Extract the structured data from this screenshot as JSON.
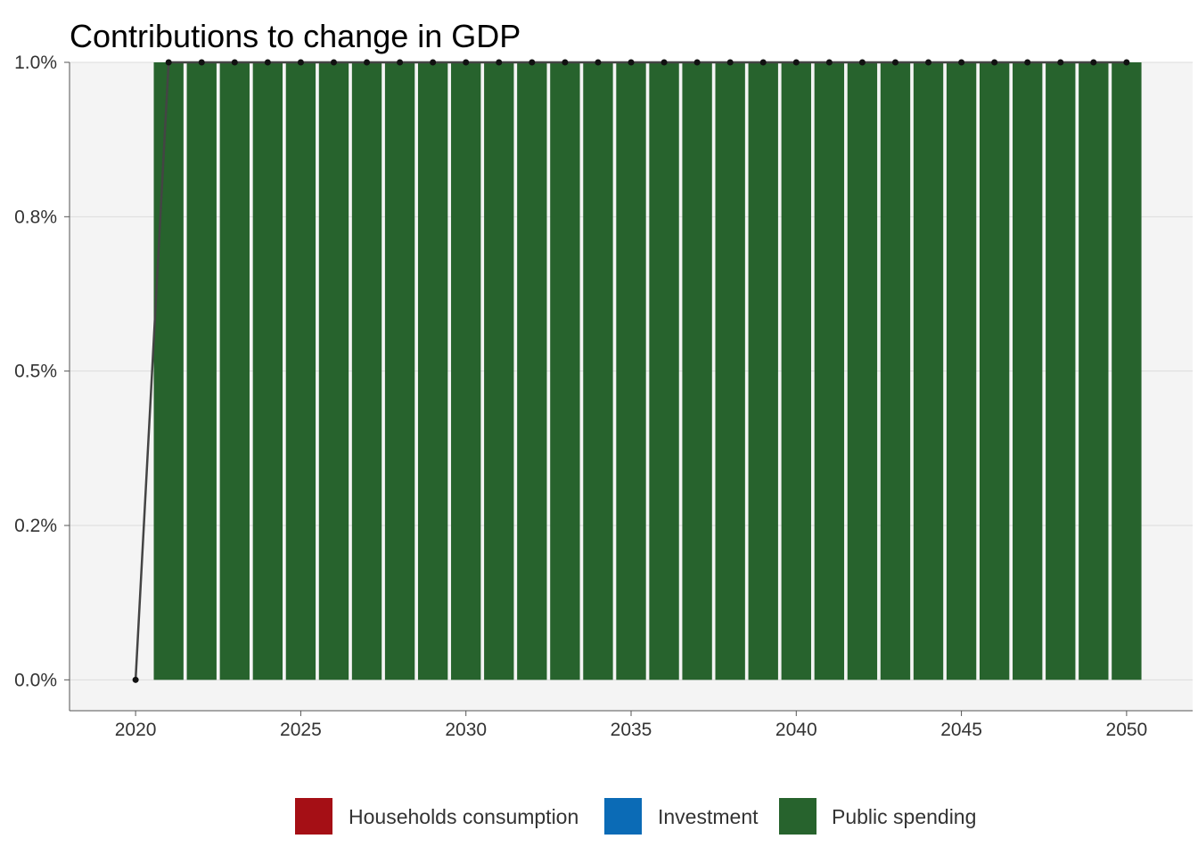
{
  "chart_data": {
    "type": "bar",
    "title": "Contributions to change in GDP",
    "xlabel": "",
    "ylabel": "",
    "x": [
      2020,
      2021,
      2022,
      2023,
      2024,
      2025,
      2026,
      2027,
      2028,
      2029,
      2030,
      2031,
      2032,
      2033,
      2034,
      2035,
      2036,
      2037,
      2038,
      2039,
      2040,
      2041,
      2042,
      2043,
      2044,
      2045,
      2046,
      2047,
      2048,
      2049,
      2050
    ],
    "xlim": [
      2018,
      2052
    ],
    "ylim": [
      -0.0005,
      0.01
    ],
    "x_ticks": [
      {
        "value": 2020,
        "label": "2020"
      },
      {
        "value": 2025,
        "label": "2025"
      },
      {
        "value": 2030,
        "label": "2030"
      },
      {
        "value": 2035,
        "label": "2035"
      },
      {
        "value": 2040,
        "label": "2040"
      },
      {
        "value": 2045,
        "label": "2045"
      },
      {
        "value": 2050,
        "label": "2050"
      }
    ],
    "y_ticks": [
      {
        "value": 0.0,
        "label": "0.0%"
      },
      {
        "value": 0.0025,
        "label": "0.2%"
      },
      {
        "value": 0.005,
        "label": "0.5%"
      },
      {
        "value": 0.0075,
        "label": "0.8%"
      },
      {
        "value": 0.01,
        "label": "1.0%"
      }
    ],
    "grid": true,
    "stacked": true,
    "series": [
      {
        "name": "Households consumption",
        "color": "#a50f15",
        "values": [
          0,
          0,
          0,
          0,
          0,
          0,
          0,
          0,
          0,
          0,
          0,
          0,
          0,
          0,
          0,
          0,
          0,
          0,
          0,
          0,
          0,
          0,
          0,
          0,
          0,
          0,
          0,
          0,
          0,
          0,
          0
        ]
      },
      {
        "name": "Investment",
        "color": "#0b6bb6",
        "values": [
          0,
          0,
          0,
          0,
          0,
          0,
          0,
          0,
          0,
          0,
          0,
          0,
          0,
          0,
          0,
          0,
          0,
          0,
          0,
          0,
          0,
          0,
          0,
          0,
          0,
          0,
          0,
          0,
          0,
          0,
          0
        ]
      },
      {
        "name": "Public spending",
        "color": "#27632d",
        "values": [
          0,
          0.01,
          0.01,
          0.01,
          0.01,
          0.01,
          0.01,
          0.01,
          0.01,
          0.01,
          0.01,
          0.01,
          0.01,
          0.01,
          0.01,
          0.01,
          0.01,
          0.01,
          0.01,
          0.01,
          0.01,
          0.01,
          0.01,
          0.01,
          0.01,
          0.01,
          0.01,
          0.01,
          0.01,
          0.01,
          0.01
        ]
      }
    ],
    "total_line": {
      "color": "#444444",
      "values": [
        0,
        0.01,
        0.01,
        0.01,
        0.01,
        0.01,
        0.01,
        0.01,
        0.01,
        0.01,
        0.01,
        0.01,
        0.01,
        0.01,
        0.01,
        0.01,
        0.01,
        0.01,
        0.01,
        0.01,
        0.01,
        0.01,
        0.01,
        0.01,
        0.01,
        0.01,
        0.01,
        0.01,
        0.01,
        0.01,
        0.01
      ]
    },
    "legend_position": "bottom",
    "panel_background": "#f4f4f4"
  }
}
